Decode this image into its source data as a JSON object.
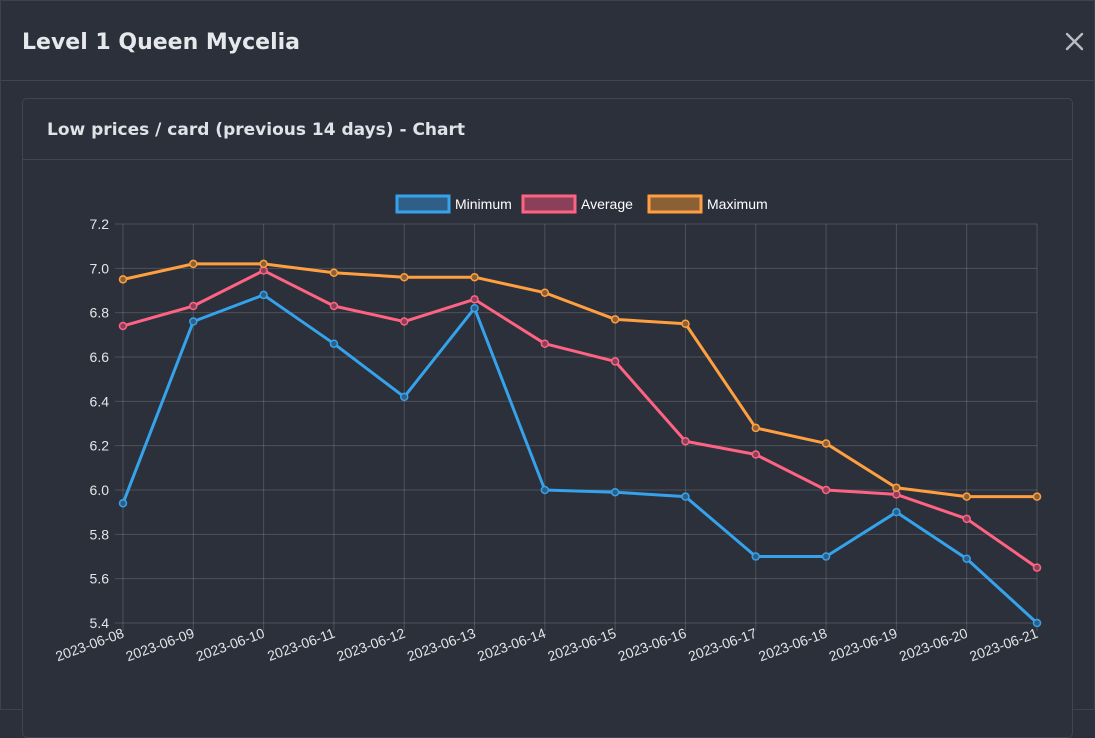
{
  "modal": {
    "title": "Level 1 Queen Mycelia",
    "close_icon": "close-icon"
  },
  "card": {
    "title": "Low prices / card (previous 14 days) - Chart"
  },
  "chart_data": {
    "type": "line",
    "title": "",
    "xlabel": "",
    "ylabel": "",
    "x": [
      "2023-06-08",
      "2023-06-09",
      "2023-06-10",
      "2023-06-11",
      "2023-06-12",
      "2023-06-13",
      "2023-06-14",
      "2023-06-15",
      "2023-06-16",
      "2023-06-17",
      "2023-06-18",
      "2023-06-19",
      "2023-06-20",
      "2023-06-21"
    ],
    "ylim": [
      5.4,
      7.2
    ],
    "yticks": [
      5.4,
      5.6,
      5.8,
      6.0,
      6.2,
      6.4,
      6.6,
      6.8,
      7.0,
      7.2
    ],
    "grid": true,
    "legend_position": "top",
    "series": [
      {
        "name": "Minimum",
        "color": "#36a2eb",
        "fill": "#2f5f87",
        "values": [
          5.94,
          6.76,
          6.88,
          6.66,
          6.42,
          6.82,
          6.0,
          5.99,
          5.97,
          5.7,
          5.7,
          5.9,
          5.69,
          5.4
        ]
      },
      {
        "name": "Average",
        "color": "#ff6384",
        "fill": "#8a4058",
        "values": [
          6.74,
          6.83,
          6.99,
          6.83,
          6.76,
          6.86,
          6.66,
          6.58,
          6.22,
          6.16,
          6.0,
          5.98,
          5.87,
          5.65
        ]
      },
      {
        "name": "Maximum",
        "color": "#ff9f40",
        "fill": "#8b6036",
        "values": [
          6.95,
          7.02,
          7.02,
          6.98,
          6.96,
          6.96,
          6.89,
          6.77,
          6.75,
          6.28,
          6.21,
          6.01,
          5.97,
          5.97
        ]
      }
    ]
  }
}
